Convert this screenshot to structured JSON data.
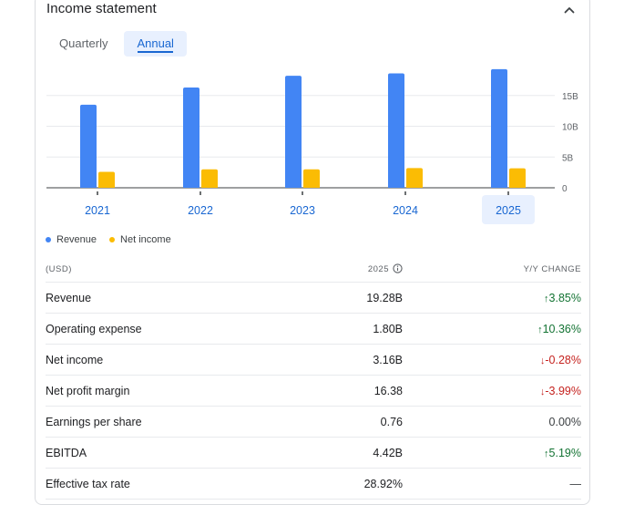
{
  "header": {
    "title": "Income statement"
  },
  "tabs": [
    {
      "label": "Quarterly",
      "active": false
    },
    {
      "label": "Annual",
      "active": true
    }
  ],
  "chart_data": {
    "type": "bar",
    "categories": [
      "2021",
      "2022",
      "2023",
      "2024",
      "2025"
    ],
    "selected_category": "2025",
    "series": [
      {
        "name": "Revenue",
        "color": "#4285f4",
        "values": [
          13.5,
          16.3,
          18.2,
          18.6,
          19.28
        ]
      },
      {
        "name": "Net income",
        "color": "#fbbc04",
        "values": [
          2.6,
          3.0,
          3.0,
          3.2,
          3.16
        ]
      }
    ],
    "y_ticks": [
      "0",
      "5B",
      "10B",
      "15B"
    ],
    "y_tick_values": [
      0,
      5,
      10,
      15
    ],
    "ylim": [
      0,
      20
    ],
    "legend_position": "bottom-left"
  },
  "table": {
    "headers": {
      "label": "(USD)",
      "value": "2025",
      "change": "Y/Y CHANGE"
    },
    "rows": [
      {
        "label": "Revenue",
        "value": "19.28B",
        "change": "3.85%",
        "dir": "up"
      },
      {
        "label": "Operating expense",
        "value": "1.80B",
        "change": "10.36%",
        "dir": "up"
      },
      {
        "label": "Net income",
        "value": "3.16B",
        "change": "-0.28%",
        "dir": "down"
      },
      {
        "label": "Net profit margin",
        "value": "16.38",
        "change": "-3.99%",
        "dir": "down"
      },
      {
        "label": "Earnings per share",
        "value": "0.76",
        "change": "0.00%",
        "dir": "neutral"
      },
      {
        "label": "EBITDA",
        "value": "4.42B",
        "change": "5.19%",
        "dir": "up"
      },
      {
        "label": "Effective tax rate",
        "value": "28.92%",
        "change": "—",
        "dir": "neutral"
      }
    ]
  },
  "colors": {
    "accent": "#1967d2",
    "up": "#137333",
    "down": "#c5221f"
  }
}
